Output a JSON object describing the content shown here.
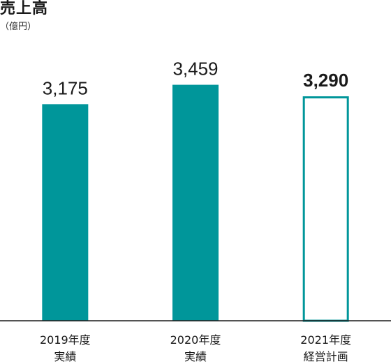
{
  "title": "売上高",
  "unit": "（億円）",
  "colors": {
    "bar": "#00969a",
    "axis": "#1a1a1a",
    "text": "#1a1a1a"
  },
  "chart_data": {
    "type": "bar",
    "title": "売上高",
    "unit": "（億円）",
    "categories": [
      [
        "2019年度",
        "実績"
      ],
      [
        "2020年度",
        "実績"
      ],
      [
        "2021年度",
        "経営計画"
      ]
    ],
    "values": [
      3175,
      3459,
      3290
    ],
    "value_labels": [
      "3,175",
      "3,459",
      "3,290"
    ],
    "styles": [
      "filled",
      "filled",
      "outline"
    ],
    "emphasized": [
      false,
      false,
      true
    ],
    "ylim": [
      0,
      3700
    ],
    "grid": false,
    "legend": "none"
  }
}
